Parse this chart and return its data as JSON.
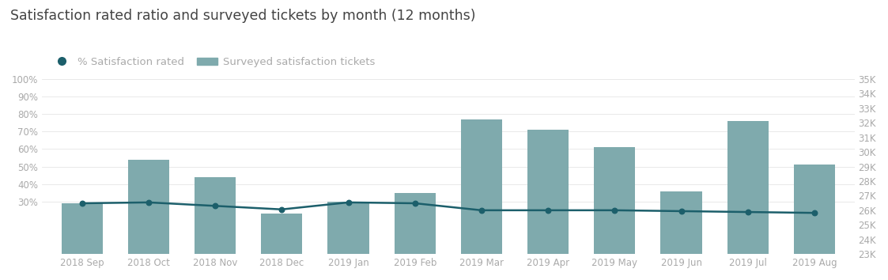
{
  "title": "Satisfaction rated ratio and surveyed tickets by month (12 months)",
  "months": [
    "2018 Sep",
    "2018 Oct",
    "2018 Nov",
    "2018 Dec",
    "2019 Jan",
    "2019 Feb",
    "2019 Mar",
    "2019 Apr",
    "2019 May",
    "2019 Jun",
    "2019 Jul",
    "2019 Aug"
  ],
  "bar_values": [
    29,
    54,
    44,
    23,
    30,
    35,
    77,
    71,
    61,
    36,
    76,
    51
  ],
  "line_values": [
    29.0,
    29.5,
    27.5,
    25.5,
    29.5,
    29.0,
    25.0,
    25.0,
    25.0,
    24.5,
    24.0,
    23.5
  ],
  "bar_color": "#7FAAAD",
  "line_color": "#1C5F6B",
  "dot_color": "#1C5F6B",
  "background_color": "#ffffff",
  "left_ylim": [
    0,
    100
  ],
  "right_ylim_labels": [
    35,
    34,
    33,
    32,
    31,
    30,
    29,
    28,
    27,
    26,
    25,
    24,
    23
  ],
  "left_yticks": [
    30,
    40,
    50,
    60,
    70,
    80,
    90,
    100
  ],
  "left_ytick_positions": [
    30,
    40,
    50,
    60,
    70,
    80,
    90,
    100
  ],
  "right_ytick_positions": [
    35,
    34,
    33,
    32,
    31,
    30,
    29,
    28,
    27,
    26,
    25,
    24,
    23
  ],
  "legend_label_line": "% Satisfaction rated",
  "legend_label_bar": "Surveyed satisfaction tickets",
  "title_fontsize": 12.5,
  "tick_fontsize": 8.5,
  "legend_fontsize": 9.5,
  "grid_color": "#e5e5e5"
}
